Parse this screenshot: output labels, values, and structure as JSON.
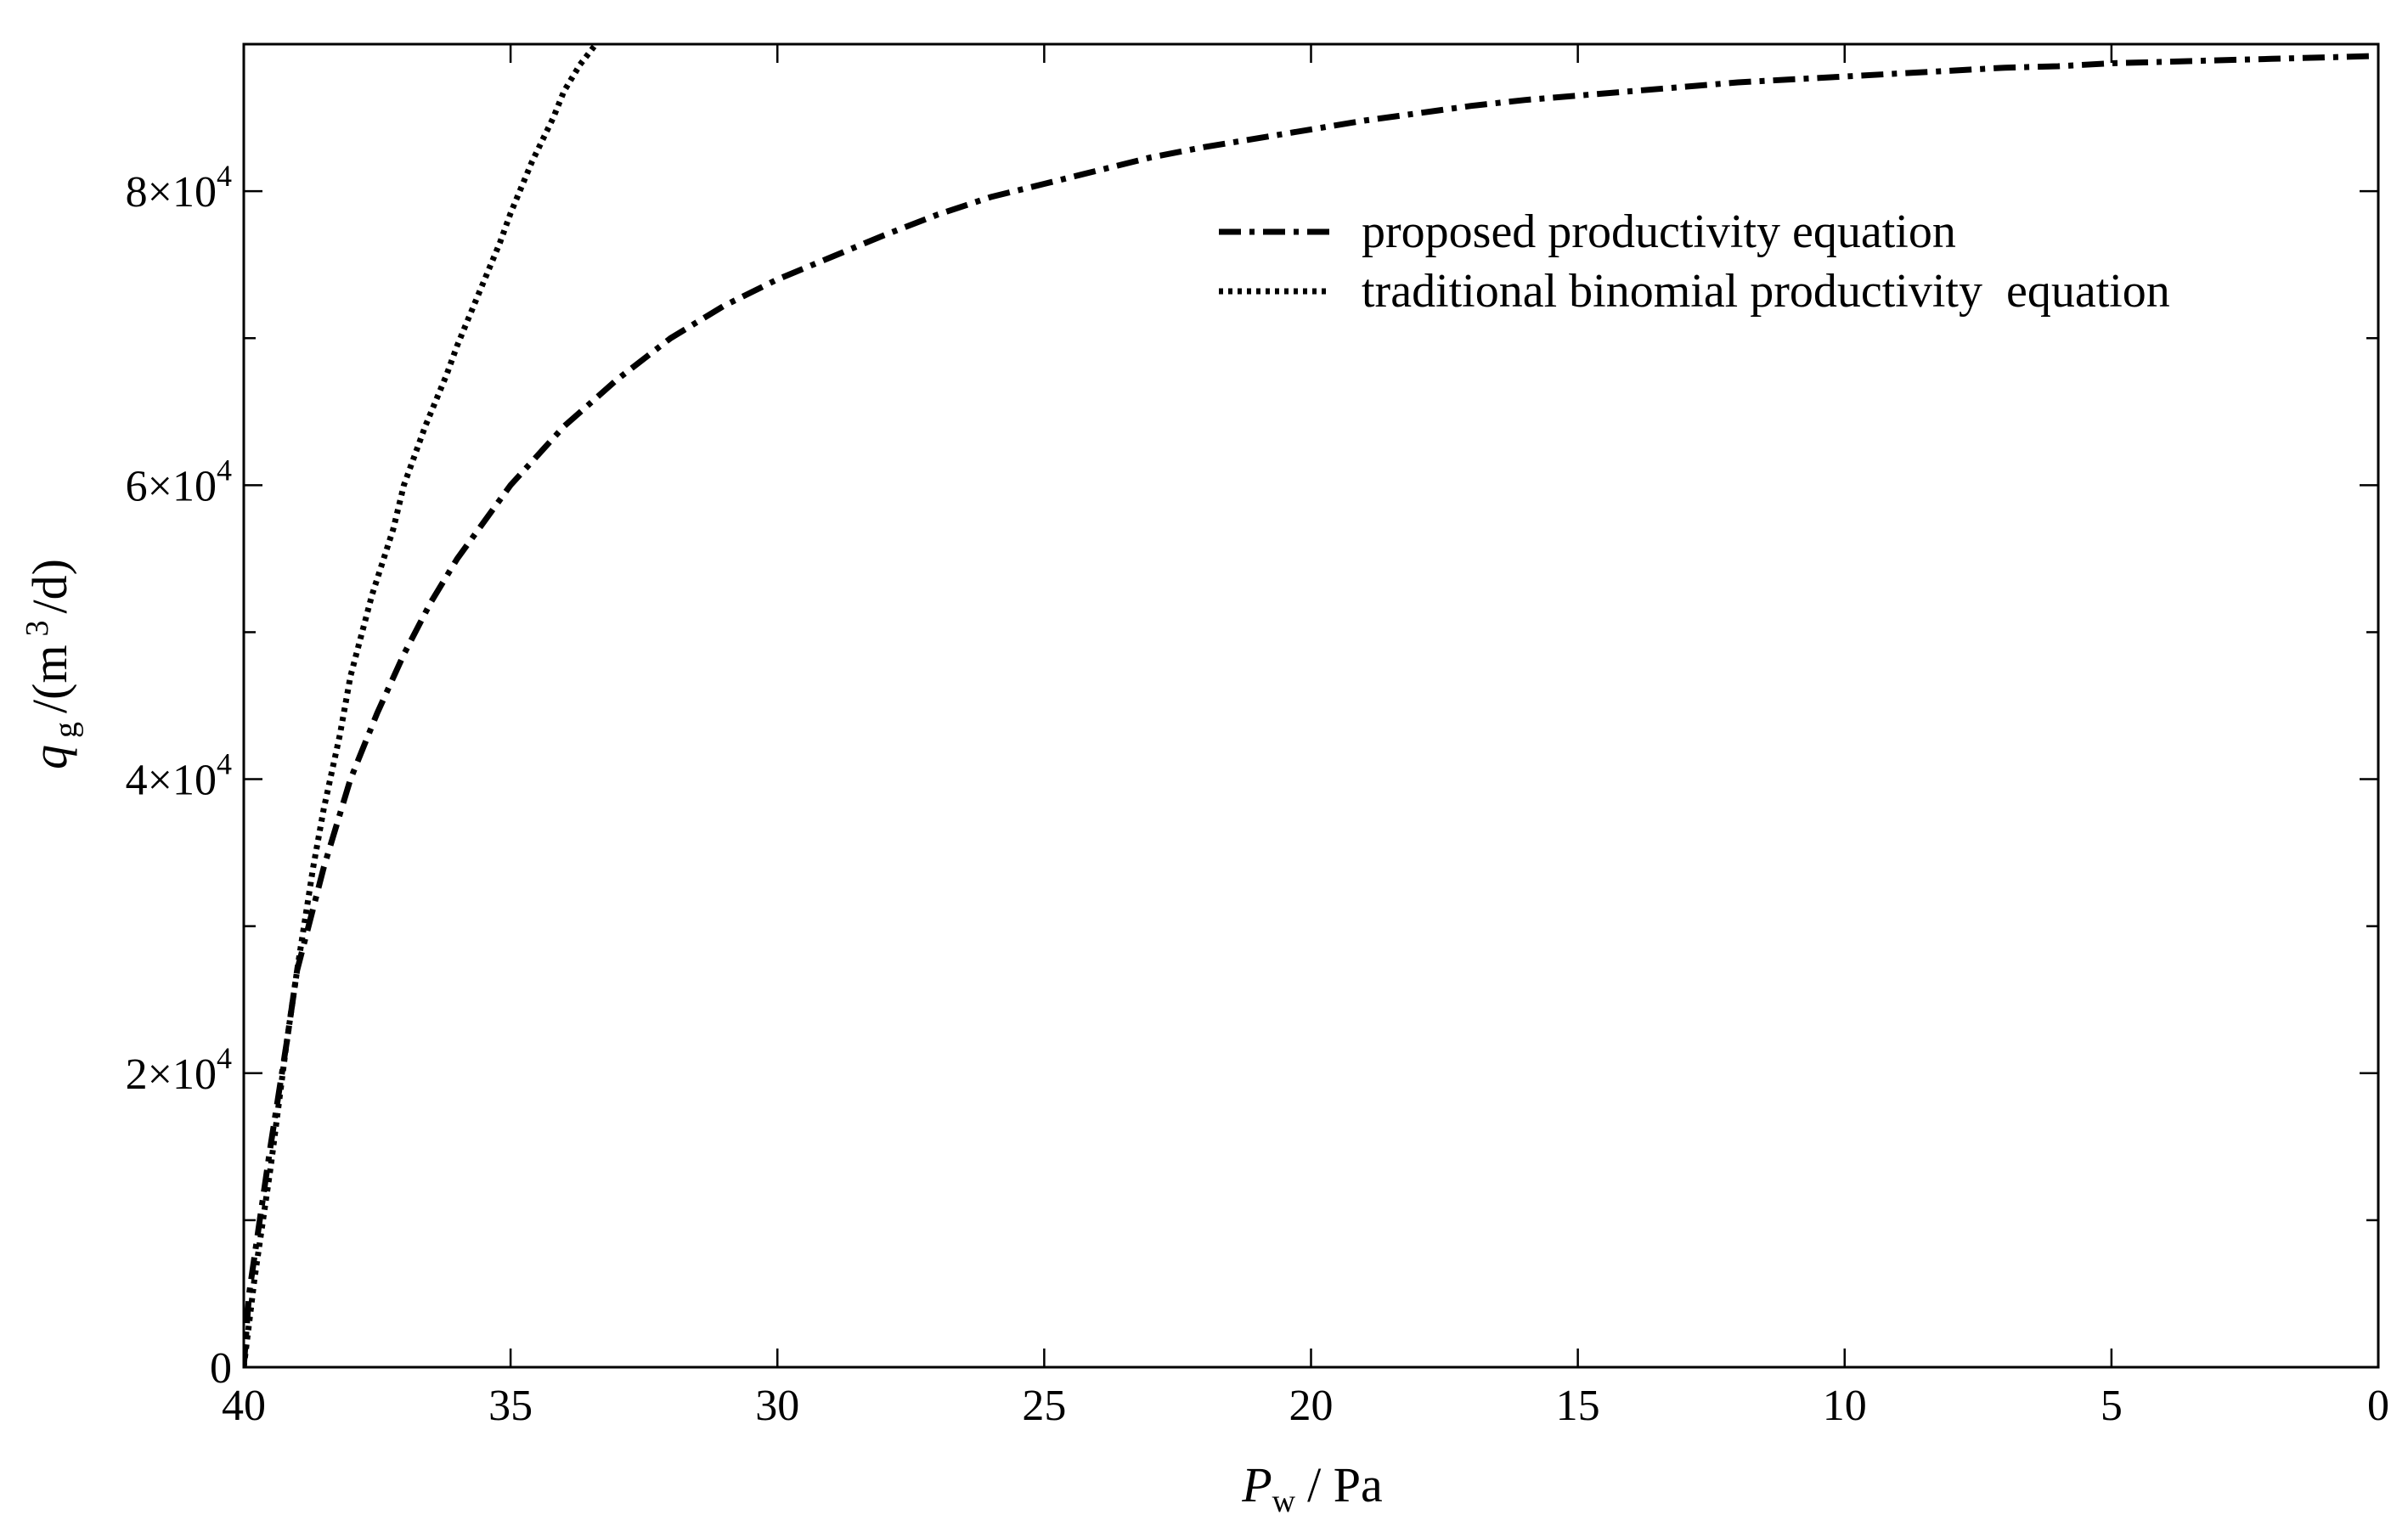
{
  "chart_data": {
    "type": "line",
    "xlabel": {
      "var": "P",
      "sub": "w",
      "unit": "/ Pa"
    },
    "ylabel": {
      "var": "q",
      "sub": "g",
      "unit_pre": "/(m",
      "unit_sup": "3",
      "unit_post": "/d)"
    },
    "xlim": [
      40,
      0
    ],
    "ylim": [
      0,
      90000
    ],
    "x_reversed": true,
    "x_ticks": [
      40,
      35,
      30,
      25,
      20,
      15,
      10,
      5,
      0
    ],
    "x_tick_labels": [
      "40",
      "35",
      "30",
      "25",
      "20",
      "15",
      "10",
      "5",
      "0"
    ],
    "y_ticks": [
      0,
      20000,
      40000,
      60000,
      80000
    ],
    "y_tick_labels": [
      {
        "base": "0",
        "exp": ""
      },
      {
        "base": "2×10",
        "exp": "4"
      },
      {
        "base": "4×10",
        "exp": "4"
      },
      {
        "base": "6×10",
        "exp": "4"
      },
      {
        "base": "8×10",
        "exp": "4"
      }
    ],
    "y_minor_ticks": [
      10000,
      30000,
      50000,
      70000
    ],
    "grid": false,
    "legend_position": "top-right",
    "series": [
      {
        "name": "proposed productivity equation",
        "style": "dashdot",
        "x": [
          40,
          39.9,
          39.7,
          39.5,
          39.2,
          39.0,
          38.5,
          38.0,
          37.5,
          37.0,
          36.5,
          36.0,
          35.0,
          34.0,
          33.0,
          32.0,
          31.0,
          30.0,
          29.0,
          28.0,
          27.0,
          26.0,
          25.0,
          24.0,
          23.0,
          22.0,
          21.0,
          20.0,
          19.0,
          18.0,
          17.0,
          16.0,
          15.0,
          14.0,
          13.0,
          12.0,
          11.0,
          10.0,
          9.0,
          8.0,
          7.0,
          6.0,
          5.0,
          4.0,
          3.0,
          2.0,
          1.0,
          0.0
        ],
        "y": [
          0,
          5000,
          10000,
          15000,
          22000,
          27000,
          34000,
          40000,
          44500,
          48500,
          52000,
          55000,
          60000,
          64000,
          67200,
          70000,
          72200,
          74000,
          75500,
          77000,
          78400,
          79600,
          80500,
          81400,
          82300,
          83000,
          83600,
          84200,
          84800,
          85300,
          85800,
          86200,
          86500,
          86800,
          87100,
          87400,
          87600,
          87800,
          88000,
          88200,
          88400,
          88500,
          88700,
          88800,
          88900,
          89000,
          89100,
          89200
        ]
      },
      {
        "name": "traditional binomial productivity  equation",
        "style": "dotted",
        "x": [
          40,
          39.8,
          39.5,
          39.2,
          39.0,
          38.7,
          38.5,
          38.2,
          38.0,
          37.6,
          37.2,
          37.0,
          36.6,
          36.2,
          36.0,
          35.6,
          35.2,
          35.0,
          34.6,
          34.2,
          34.0,
          33.7,
          33.4
        ],
        "y": [
          0,
          6000,
          13500,
          22000,
          27000,
          34000,
          38000,
          43000,
          47000,
          52500,
          57000,
          60000,
          64000,
          67500,
          69500,
          73000,
          76500,
          78500,
          82000,
          85000,
          86800,
          88600,
          90000
        ]
      }
    ]
  }
}
